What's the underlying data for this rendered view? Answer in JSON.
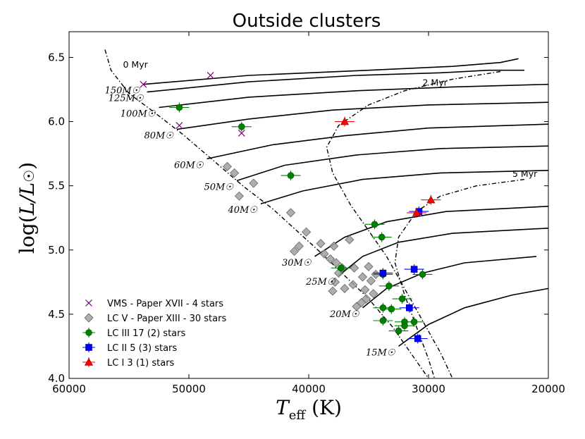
{
  "chart_data": {
    "type": "scatter",
    "title": "Outside clusters",
    "xlabel": "T_eff (K)",
    "ylabel": "log(L/L☉)",
    "xlim": [
      60000,
      20000
    ],
    "ylim": [
      4.0,
      6.7
    ],
    "x_ticks": [
      60000,
      50000,
      40000,
      30000,
      20000
    ],
    "x_tick_labels": [
      "60000",
      "50000",
      "40000",
      "30000",
      "20000"
    ],
    "y_ticks": [
      4.0,
      4.5,
      5.0,
      5.5,
      6.0,
      6.5
    ],
    "y_tick_labels": [
      "4.0",
      "4.5",
      "5.0",
      "5.5",
      "6.0",
      "6.5"
    ],
    "colors": {
      "vms": "#800080",
      "lcv": "#a0a0a0",
      "lciii": "#008000",
      "lcii": "#0000ff",
      "lci": "#ff0000",
      "track": "#000000"
    },
    "tracks": [
      {
        "mass": "150",
        "label": "150M☉",
        "points": [
          [
            53800,
            6.29
          ],
          [
            45000,
            6.36
          ],
          [
            35000,
            6.4
          ],
          [
            28000,
            6.43
          ],
          [
            24000,
            6.46
          ],
          [
            22500,
            6.49
          ]
        ]
      },
      {
        "mass": "125",
        "label": "125M☉",
        "points": [
          [
            53500,
            6.23
          ],
          [
            45000,
            6.31
          ],
          [
            36000,
            6.36
          ],
          [
            29000,
            6.38
          ],
          [
            25000,
            6.4
          ],
          [
            22000,
            6.4
          ]
        ]
      },
      {
        "mass": "100",
        "label": "100M☉",
        "points": [
          [
            52500,
            6.11
          ],
          [
            45000,
            6.19
          ],
          [
            36000,
            6.24
          ],
          [
            28000,
            6.27
          ],
          [
            20000,
            6.29
          ]
        ]
      },
      {
        "mass": "80",
        "label": "80M☉",
        "points": [
          [
            51000,
            5.94
          ],
          [
            45000,
            6.02
          ],
          [
            38000,
            6.09
          ],
          [
            30000,
            6.13
          ],
          [
            20000,
            6.15
          ]
        ]
      },
      {
        "mass": "60",
        "label": "60M☉",
        "points": [
          [
            48500,
            5.71
          ],
          [
            43000,
            5.82
          ],
          [
            37000,
            5.89
          ],
          [
            30000,
            5.95
          ],
          [
            20000,
            5.98
          ]
        ]
      },
      {
        "mass": "50",
        "label": "50M☉",
        "points": [
          [
            46000,
            5.54
          ],
          [
            42000,
            5.66
          ],
          [
            36000,
            5.74
          ],
          [
            29000,
            5.79
          ],
          [
            20000,
            5.81
          ]
        ]
      },
      {
        "mass": "40",
        "label": "40M☉",
        "points": [
          [
            44000,
            5.36
          ],
          [
            40500,
            5.46
          ],
          [
            35500,
            5.55
          ],
          [
            29000,
            5.6
          ],
          [
            20000,
            5.62
          ]
        ]
      },
      {
        "mass": "30",
        "label": "30M☉",
        "points": [
          [
            39500,
            4.95
          ],
          [
            37000,
            5.1
          ],
          [
            33500,
            5.22
          ],
          [
            28500,
            5.3
          ],
          [
            20000,
            5.34
          ]
        ]
      },
      {
        "mass": "25",
        "label": "25M☉",
        "points": [
          [
            37500,
            4.8
          ],
          [
            35500,
            4.95
          ],
          [
            32500,
            5.06
          ],
          [
            28000,
            5.13
          ],
          [
            20000,
            5.17
          ]
        ]
      },
      {
        "mass": "20",
        "label": "20M☉",
        "points": [
          [
            35500,
            4.55
          ],
          [
            33500,
            4.7
          ],
          [
            30500,
            4.82
          ],
          [
            27000,
            4.9
          ],
          [
            21000,
            4.95
          ]
        ]
      },
      {
        "mass": "15",
        "label": "15M☉",
        "points": [
          [
            32500,
            4.25
          ],
          [
            30000,
            4.42
          ],
          [
            27000,
            4.55
          ],
          [
            23000,
            4.65
          ],
          [
            20000,
            4.7
          ]
        ]
      }
    ],
    "isochrones": [
      {
        "label": "0 Myr",
        "points": [
          [
            57000,
            6.56
          ],
          [
            56500,
            6.4
          ],
          [
            55000,
            6.22
          ],
          [
            53000,
            6.08
          ],
          [
            50500,
            5.9
          ],
          [
            48000,
            5.7
          ],
          [
            45500,
            5.5
          ],
          [
            43000,
            5.32
          ],
          [
            41000,
            5.15
          ],
          [
            39000,
            4.98
          ],
          [
            37000,
            4.8
          ],
          [
            35000,
            4.62
          ],
          [
            33000,
            4.4
          ],
          [
            31500,
            4.2
          ],
          [
            30000,
            4.0
          ]
        ]
      },
      {
        "label": "2 Myr",
        "points": [
          [
            24000,
            6.39
          ],
          [
            28000,
            6.33
          ],
          [
            32000,
            6.24
          ],
          [
            35000,
            6.13
          ],
          [
            37500,
            5.97
          ],
          [
            38500,
            5.8
          ],
          [
            38000,
            5.6
          ],
          [
            36500,
            5.35
          ],
          [
            35000,
            5.15
          ],
          [
            33500,
            4.95
          ],
          [
            32000,
            4.7
          ],
          [
            30500,
            4.45
          ],
          [
            29000,
            4.2
          ],
          [
            28000,
            4.0
          ]
        ]
      },
      {
        "label": "5 Myr",
        "points": [
          [
            22000,
            5.55
          ],
          [
            26000,
            5.5
          ],
          [
            29000,
            5.42
          ],
          [
            31000,
            5.3
          ],
          [
            32500,
            5.1
          ],
          [
            32800,
            4.9
          ],
          [
            32000,
            4.65
          ],
          [
            31000,
            4.4
          ],
          [
            30000,
            4.15
          ],
          [
            29500,
            4.0
          ]
        ]
      }
    ],
    "series": [
      {
        "name": "VMS - Paper XVII - 4 stars",
        "marker": "x",
        "points": [
          [
            53800,
            6.29
          ],
          [
            48200,
            6.36
          ],
          [
            50800,
            5.97
          ],
          [
            45600,
            5.91
          ]
        ]
      },
      {
        "name": "LC V - Paper XIII - 30 stars",
        "marker": "diamond",
        "points": [
          [
            46800,
            5.65
          ],
          [
            46200,
            5.6
          ],
          [
            44600,
            5.52
          ],
          [
            45800,
            5.42
          ],
          [
            41500,
            5.29
          ],
          [
            40200,
            5.14
          ],
          [
            40800,
            5.03
          ],
          [
            41200,
            4.99
          ],
          [
            39000,
            5.05
          ],
          [
            38700,
            4.97
          ],
          [
            38200,
            4.93
          ],
          [
            37700,
            4.9
          ],
          [
            37900,
            5.03
          ],
          [
            36600,
            5.08
          ],
          [
            37200,
            4.86
          ],
          [
            36200,
            4.86
          ],
          [
            37500,
            4.82
          ],
          [
            37800,
            4.75
          ],
          [
            37000,
            4.7
          ],
          [
            36300,
            4.73
          ],
          [
            35500,
            4.79
          ],
          [
            35000,
            4.87
          ],
          [
            34800,
            4.76
          ],
          [
            34400,
            4.81
          ],
          [
            35300,
            4.69
          ],
          [
            35600,
            4.59
          ],
          [
            35200,
            4.62
          ],
          [
            36000,
            4.56
          ],
          [
            34600,
            4.66
          ],
          [
            38000,
            4.68
          ]
        ]
      },
      {
        "name": "LC III 17 (2) stars",
        "marker": "circle",
        "points": [
          [
            41500,
            5.58
          ],
          [
            34500,
            5.2
          ],
          [
            33900,
            5.1
          ],
          [
            37300,
            4.86
          ],
          [
            33800,
            4.81
          ],
          [
            33300,
            4.72
          ],
          [
            32200,
            4.62
          ],
          [
            30500,
            4.81
          ],
          [
            33800,
            4.55
          ],
          [
            33100,
            4.54
          ],
          [
            32000,
            4.44
          ],
          [
            33800,
            4.45
          ],
          [
            32000,
            4.41
          ],
          [
            31200,
            4.44
          ],
          [
            32500,
            4.37
          ],
          [
            50800,
            6.11
          ],
          [
            45600,
            5.96
          ]
        ]
      },
      {
        "name": "LC II   5  (3) stars",
        "marker": "square",
        "points": [
          [
            30800,
            5.3
          ],
          [
            31200,
            4.85
          ],
          [
            33800,
            4.82
          ],
          [
            31600,
            4.55
          ],
          [
            30900,
            4.31
          ]
        ]
      },
      {
        "name": "LC I    3 (1) stars",
        "marker": "triangle",
        "points": [
          [
            37000,
            6.0
          ],
          [
            29800,
            5.39
          ],
          [
            31000,
            5.29
          ]
        ]
      }
    ]
  }
}
